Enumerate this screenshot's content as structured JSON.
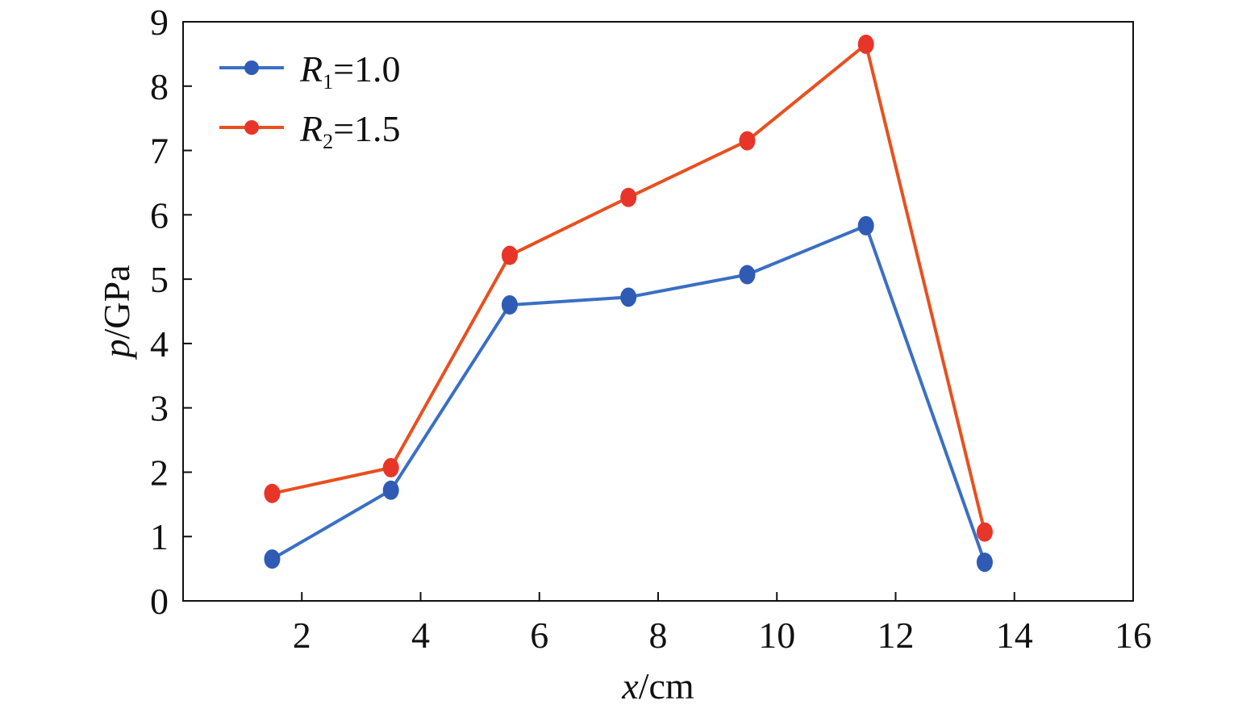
{
  "chart_data": {
    "type": "line",
    "x_label_var": "x",
    "x_label_unit": "/cm",
    "y_label_var": "p",
    "y_label_unit": "/GPa",
    "xlim": [
      0,
      16
    ],
    "ylim": [
      0,
      9
    ],
    "x_ticks": [
      2,
      4,
      6,
      8,
      10,
      12,
      14,
      16
    ],
    "y_ticks": [
      0,
      1,
      2,
      3,
      4,
      5,
      6,
      7,
      8,
      9
    ],
    "x_tick_labels": [
      "2",
      "4",
      "6",
      "8",
      "10",
      "12",
      "14",
      "16"
    ],
    "y_tick_labels": [
      "0",
      "1",
      "2",
      "3",
      "4",
      "5",
      "6",
      "7",
      "8",
      "9"
    ],
    "x": [
      1.5,
      3.5,
      5.5,
      7.5,
      9.5,
      11.5,
      13.5
    ],
    "series": [
      {
        "name_var": "R",
        "name_sub": "1",
        "name_value": "=1.0",
        "color": "#3a6fc4",
        "marker_color": "#2f5bb5",
        "values": [
          0.65,
          1.72,
          4.6,
          4.72,
          5.07,
          5.83,
          0.6
        ]
      },
      {
        "name_var": "R",
        "name_sub": "2",
        "name_value": "=1.5",
        "color": "#e8501e",
        "marker_color": "#e8352a",
        "values": [
          1.67,
          2.07,
          5.37,
          6.27,
          7.15,
          8.65,
          1.07
        ]
      }
    ],
    "legend_position": "top-left",
    "grid": false
  }
}
